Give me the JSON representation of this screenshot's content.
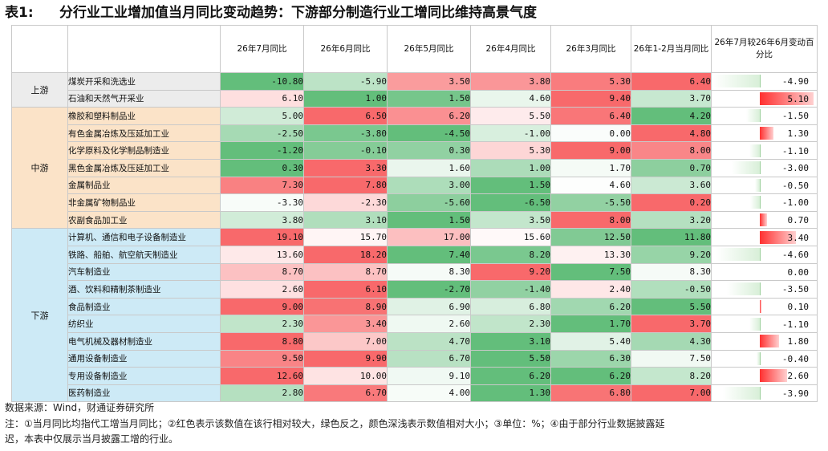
{
  "title": {
    "number": "表1:",
    "text": "分行业工业增加值当月同比变动趋势：下游部分制造行业工增同比维持高景气度"
  },
  "headers": [
    "26年7月同比",
    "26年6月同比",
    "26年5月同比",
    "26年4月同比",
    "26年3月同比",
    "26年1-2月当月同比",
    "26年7月较26年6月变动百分比"
  ],
  "segments": [
    {
      "name": "上游",
      "bg": "#ececec",
      "rows": [
        {
          "name": "煤炭开采和洗选业",
          "vals": [
            "-10.80",
            "-5.90",
            "3.50",
            "3.80",
            "5.30",
            "6.40"
          ],
          "change": "-4.90"
        },
        {
          "name": "石油和天然气开采业",
          "vals": [
            "6.10",
            "1.00",
            "1.50",
            "4.60",
            "9.40",
            "3.70"
          ],
          "change": "5.10"
        }
      ]
    },
    {
      "name": "中游",
      "bg": "#fbe3c8",
      "rows": [
        {
          "name": "橡胶和塑料制品业",
          "vals": [
            "5.00",
            "6.50",
            "6.20",
            "5.50",
            "6.40",
            "4.20"
          ],
          "change": "-1.50"
        },
        {
          "name": "有色金属冶炼及压延加工业",
          "vals": [
            "-2.50",
            "-3.80",
            "-4.50",
            "-1.00",
            "0.00",
            "4.80"
          ],
          "change": "1.30"
        },
        {
          "name": "化学原料及化学制品制造业",
          "vals": [
            "-1.20",
            "-0.10",
            "0.30",
            "5.30",
            "9.00",
            "8.00"
          ],
          "change": "-1.10"
        },
        {
          "name": "黑色金属冶炼及压延加工业",
          "vals": [
            "0.30",
            "3.30",
            "1.60",
            "1.00",
            "1.70",
            "0.70"
          ],
          "change": "-3.00"
        },
        {
          "name": "金属制品业",
          "vals": [
            "7.30",
            "7.80",
            "3.00",
            "1.50",
            "4.60",
            "3.60"
          ],
          "change": "-0.50"
        },
        {
          "name": "非金属矿物制品业",
          "vals": [
            "-3.30",
            "-2.30",
            "-5.60",
            "-6.50",
            "-5.50",
            "0.20"
          ],
          "change": "-1.00"
        },
        {
          "name": "农副食品加工业",
          "vals": [
            "3.80",
            "3.10",
            "1.50",
            "3.50",
            "8.00",
            "3.20"
          ],
          "change": "0.70"
        }
      ]
    },
    {
      "name": "下游",
      "bg": "#cdeaf6",
      "rows": [
        {
          "name": "计算机、通信和电子设备制造业",
          "vals": [
            "19.10",
            "15.70",
            "17.00",
            "15.60",
            "12.50",
            "11.80"
          ],
          "change": "3.40"
        },
        {
          "name": "铁路、船舶、航空航天制造业",
          "vals": [
            "13.60",
            "18.20",
            "7.40",
            "8.20",
            "13.30",
            "9.20"
          ],
          "change": "-4.60"
        },
        {
          "name": "汽车制造业",
          "vals": [
            "8.70",
            "8.70",
            "8.30",
            "9.20",
            "7.50",
            "8.30"
          ],
          "change": "0.00"
        },
        {
          "name": "酒、饮料和精制茶制造业",
          "vals": [
            "2.60",
            "6.10",
            "-2.70",
            "-1.40",
            "2.40",
            "-0.50"
          ],
          "change": "-3.50"
        },
        {
          "name": "食品制造业",
          "vals": [
            "9.00",
            "8.90",
            "6.90",
            "6.80",
            "6.20",
            "5.50"
          ],
          "change": "0.10"
        },
        {
          "name": "纺织业",
          "vals": [
            "2.30",
            "3.40",
            "2.60",
            "2.30",
            "1.70",
            "3.70"
          ],
          "change": "-1.10"
        },
        {
          "name": "电气机械及器材制造业",
          "vals": [
            "8.80",
            "7.00",
            "4.70",
            "3.10",
            "5.40",
            "4.30"
          ],
          "change": "1.80"
        },
        {
          "name": "通用设备制造业",
          "vals": [
            "9.50",
            "9.90",
            "6.70",
            "5.50",
            "6.30",
            "7.50"
          ],
          "change": "-0.40"
        },
        {
          "name": "专用设备制造业",
          "vals": [
            "12.60",
            "10.00",
            "9.10",
            "6.20",
            "6.20",
            "8.20"
          ],
          "change": "2.60"
        },
        {
          "name": "医药制造业",
          "vals": [
            "2.80",
            "6.70",
            "4.00",
            "1.30",
            "6.80",
            "7.00"
          ],
          "change": "-3.90"
        }
      ]
    }
  ],
  "colors": {
    "red": "#f8696b",
    "white": "#ffffff",
    "green": "#63be7b"
  },
  "footer": {
    "source": "数据来源：Wind，财通证券研究所",
    "note_line1": "注：①当月同比均指代工增当月同比；②红色表示该数值在该行相对较大，绿色反之，颜色深浅表示数值相对大小；③单位：%；④由于部分行业数据披露延",
    "note_line2": "迟，本表中仅展示当月披露工增的行业。"
  }
}
